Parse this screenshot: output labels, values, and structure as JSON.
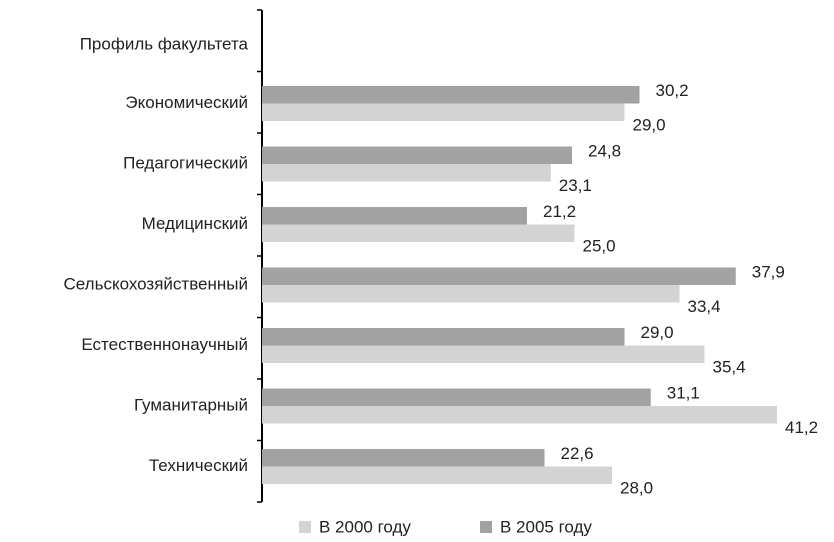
{
  "chart_data": {
    "type": "barh",
    "y_label": "Профиль факультета",
    "categories": [
      "Экономический",
      "Педагогический",
      "Медицинский",
      "Сельскохозяйственный",
      "Естественнонаучный",
      "Гуманитарный",
      "Технический"
    ],
    "series": [
      {
        "name": "В 2000 году",
        "color": "#d3d3d3",
        "values": [
          29.0,
          23.1,
          25.0,
          33.4,
          35.4,
          41.2,
          28.0
        ],
        "value_labels": [
          "29,0",
          "23,1",
          "25,0",
          "33,4",
          "35,4",
          "41,2",
          "28,0"
        ]
      },
      {
        "name": "В 2005 году",
        "color": "#a2a2a2",
        "values": [
          30.2,
          24.8,
          21.2,
          37.9,
          29.0,
          31.1,
          22.6
        ],
        "value_labels": [
          "30,2",
          "24,8",
          "21,2",
          "37,9",
          "29,0",
          "31,1",
          "22,6"
        ]
      }
    ],
    "legend": "bottom"
  }
}
